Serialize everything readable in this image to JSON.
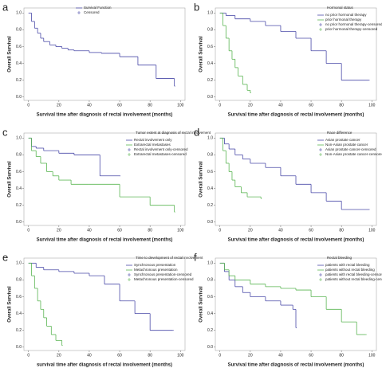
{
  "chart_data": [
    {
      "type": "line",
      "letter": "a",
      "legend_title": null,
      "x_label": "Survival time after diagnosis of rectal involvement (months)",
      "y_label": "Overall Survival",
      "xlim": [
        -3,
        103
      ],
      "ylim": [
        -0.04,
        1.06
      ],
      "xticks": [
        0,
        20,
        40,
        60,
        80,
        100
      ],
      "yticks": [
        {
          "value": 0,
          "label": "0.0"
        },
        0.2,
        0.4,
        0.6,
        0.8,
        {
          "value": 1,
          "label": "1.0"
        }
      ],
      "series": [
        {
          "name": "Survival Function",
          "color": "#4a4aa8",
          "x": [
            0,
            2,
            4,
            6,
            8,
            10,
            14,
            18,
            22,
            26,
            30,
            40,
            48,
            60,
            72,
            84,
            96
          ],
          "values": [
            1,
            0.9,
            0.82,
            0.76,
            0.7,
            0.66,
            0.62,
            0.6,
            0.58,
            0.56,
            0.55,
            0.53,
            0.52,
            0.48,
            0.38,
            0.22,
            0.13
          ]
        }
      ],
      "censored_legend": [
        "Censored"
      ]
    },
    {
      "type": "line",
      "letter": "b",
      "legend_title": "Hormonal status",
      "x_label": "Survival time after diagnosis of rectal involvement (months)",
      "y_label": "Overall Survival",
      "xlim": [
        -3,
        103
      ],
      "ylim": [
        -0.04,
        1.06
      ],
      "xticks": [
        0,
        20,
        40,
        60,
        80,
        100
      ],
      "yticks": [
        {
          "value": 0,
          "label": "0.0"
        },
        0.2,
        0.4,
        0.6,
        0.8,
        {
          "value": 1,
          "label": "1.0"
        }
      ],
      "series": [
        {
          "name": "no prior hormonal therapy",
          "color": "#4a4aa8",
          "x": [
            0,
            4,
            10,
            20,
            30,
            40,
            50,
            60,
            70,
            80,
            98
          ],
          "values": [
            1,
            0.97,
            0.93,
            0.9,
            0.85,
            0.78,
            0.7,
            0.55,
            0.4,
            0.2,
            0.2
          ]
        },
        {
          "name": "prior hormonal therapy",
          "color": "#5ab552",
          "x": [
            0,
            2,
            4,
            6,
            8,
            10,
            12,
            15,
            18,
            20
          ],
          "values": [
            1,
            0.85,
            0.7,
            0.55,
            0.45,
            0.35,
            0.25,
            0.15,
            0.08,
            0.05
          ]
        }
      ],
      "censored_legend": [
        "no prior hormonal therapy-censored",
        "prior hormonal therapy-censored"
      ]
    },
    {
      "type": "line",
      "letter": "c",
      "legend_title": "Tumor extent at diagnosis of rectal involvement",
      "x_label": "Survival time after diagnosis of rectal involvement (months)",
      "y_label": "Overall Survival",
      "xlim": [
        -3,
        103
      ],
      "ylim": [
        -0.04,
        1.06
      ],
      "xticks": [
        0,
        20,
        40,
        60,
        80,
        100
      ],
      "yticks": [
        {
          "value": 0,
          "label": "0.0"
        },
        0.2,
        0.4,
        0.6,
        0.8,
        {
          "value": 1,
          "label": "1.0"
        }
      ],
      "series": [
        {
          "name": "Rectal involvement only",
          "color": "#4a4aa8",
          "x": [
            0,
            2,
            5,
            10,
            20,
            30,
            47,
            60
          ],
          "values": [
            1,
            0.9,
            0.88,
            0.85,
            0.82,
            0.8,
            0.55,
            0.55
          ]
        },
        {
          "name": "Extrarectal metastases",
          "color": "#5ab552",
          "x": [
            0,
            2,
            5,
            8,
            12,
            16,
            20,
            28,
            40,
            60,
            80,
            96
          ],
          "values": [
            1,
            0.85,
            0.78,
            0.7,
            0.6,
            0.55,
            0.5,
            0.45,
            0.45,
            0.3,
            0.2,
            0.12
          ]
        }
      ],
      "censored_legend": [
        "Rectal involvement only-censored",
        "Extrarectal metastases-censored"
      ]
    },
    {
      "type": "line",
      "letter": "d",
      "legend_title": "Race difference",
      "x_label": "Survival time after diagnosis of rectal involvement (months)",
      "y_label": "Overall Survival",
      "xlim": [
        -3,
        103
      ],
      "ylim": [
        -0.04,
        1.06
      ],
      "xticks": [
        0,
        20,
        40,
        60,
        80,
        100
      ],
      "yticks": [
        {
          "value": 0,
          "label": "0.0"
        },
        0.2,
        0.4,
        0.6,
        0.8,
        {
          "value": 1,
          "label": "1.0"
        }
      ],
      "series": [
        {
          "name": "Asian prostate cancer",
          "color": "#4a4aa8",
          "x": [
            0,
            3,
            6,
            10,
            15,
            20,
            30,
            40,
            50,
            60,
            70,
            80,
            98
          ],
          "values": [
            1,
            0.93,
            0.87,
            0.8,
            0.75,
            0.7,
            0.65,
            0.55,
            0.45,
            0.35,
            0.25,
            0.15,
            0.15
          ]
        },
        {
          "name": "Non-Asian prostate cancer",
          "color": "#5ab552",
          "x": [
            0,
            2,
            4,
            6,
            8,
            10,
            14,
            18,
            27
          ],
          "values": [
            1,
            0.85,
            0.7,
            0.6,
            0.5,
            0.42,
            0.35,
            0.3,
            0.28
          ]
        }
      ],
      "censored_legend": [
        "Asian prostate cancer-censored",
        "Non-Asian prostate cancer-censored"
      ]
    },
    {
      "type": "line",
      "letter": "e",
      "legend_title": "Time to development of rectal involvement",
      "x_label": "survival time after diagnosis of rectal involvement (months)",
      "y_label": "Overall Survival",
      "xlim": [
        -3,
        103
      ],
      "ylim": [
        -0.04,
        1.06
      ],
      "xticks": [
        0,
        20,
        40,
        60,
        80,
        100
      ],
      "yticks": [
        {
          "value": 0,
          "label": "0.0"
        },
        0.2,
        0.4,
        0.6,
        0.8,
        {
          "value": 1,
          "label": "1.0"
        }
      ],
      "series": [
        {
          "name": "Synchronous presentation",
          "color": "#4a4aa8",
          "x": [
            0,
            5,
            10,
            20,
            30,
            40,
            50,
            60,
            70,
            80,
            95
          ],
          "values": [
            1,
            0.95,
            0.92,
            0.9,
            0.88,
            0.85,
            0.75,
            0.55,
            0.4,
            0.2,
            0.2
          ]
        },
        {
          "name": "Metachronous presentation",
          "color": "#5ab552",
          "x": [
            0,
            2,
            4,
            6,
            8,
            10,
            12,
            15,
            18,
            22
          ],
          "values": [
            1,
            0.85,
            0.7,
            0.55,
            0.45,
            0.35,
            0.25,
            0.15,
            0.08,
            0.02
          ]
        }
      ],
      "censored_legend": [
        "Synchronous presentation-censored",
        "Metachronous presentation-censored"
      ]
    },
    {
      "type": "line",
      "letter": "f",
      "legend_title": "Rectal bleeding",
      "x_label": "Survival time after diagnosis of rectal involvement (months)",
      "y_label": "Overall Survival",
      "xlim": [
        -3,
        103
      ],
      "ylim": [
        -0.04,
        1.06
      ],
      "xticks": [
        0,
        20,
        40,
        60,
        80,
        100
      ],
      "yticks": [
        {
          "value": 0,
          "label": "0.0"
        },
        0.2,
        0.4,
        0.6,
        0.8,
        {
          "value": 1,
          "label": "1.0"
        }
      ],
      "series": [
        {
          "name": "patients with rectal bleeding",
          "color": "#4a4aa8",
          "x": [
            0,
            3,
            6,
            10,
            15,
            20,
            30,
            40,
            48,
            50
          ],
          "values": [
            1,
            0.9,
            0.8,
            0.72,
            0.65,
            0.6,
            0.55,
            0.5,
            0.45,
            0.23
          ]
        },
        {
          "name": "patients without rectal bleeding",
          "color": "#5ab552",
          "x": [
            0,
            3,
            6,
            10,
            20,
            30,
            40,
            50,
            60,
            70,
            80,
            90,
            96
          ],
          "values": [
            1,
            0.92,
            0.85,
            0.8,
            0.75,
            0.72,
            0.7,
            0.68,
            0.6,
            0.45,
            0.3,
            0.15,
            0.15
          ]
        }
      ],
      "censored_legend": [
        "patients with rectal bleeding-censored",
        "patients without rectal bleeding-censored"
      ]
    }
  ]
}
